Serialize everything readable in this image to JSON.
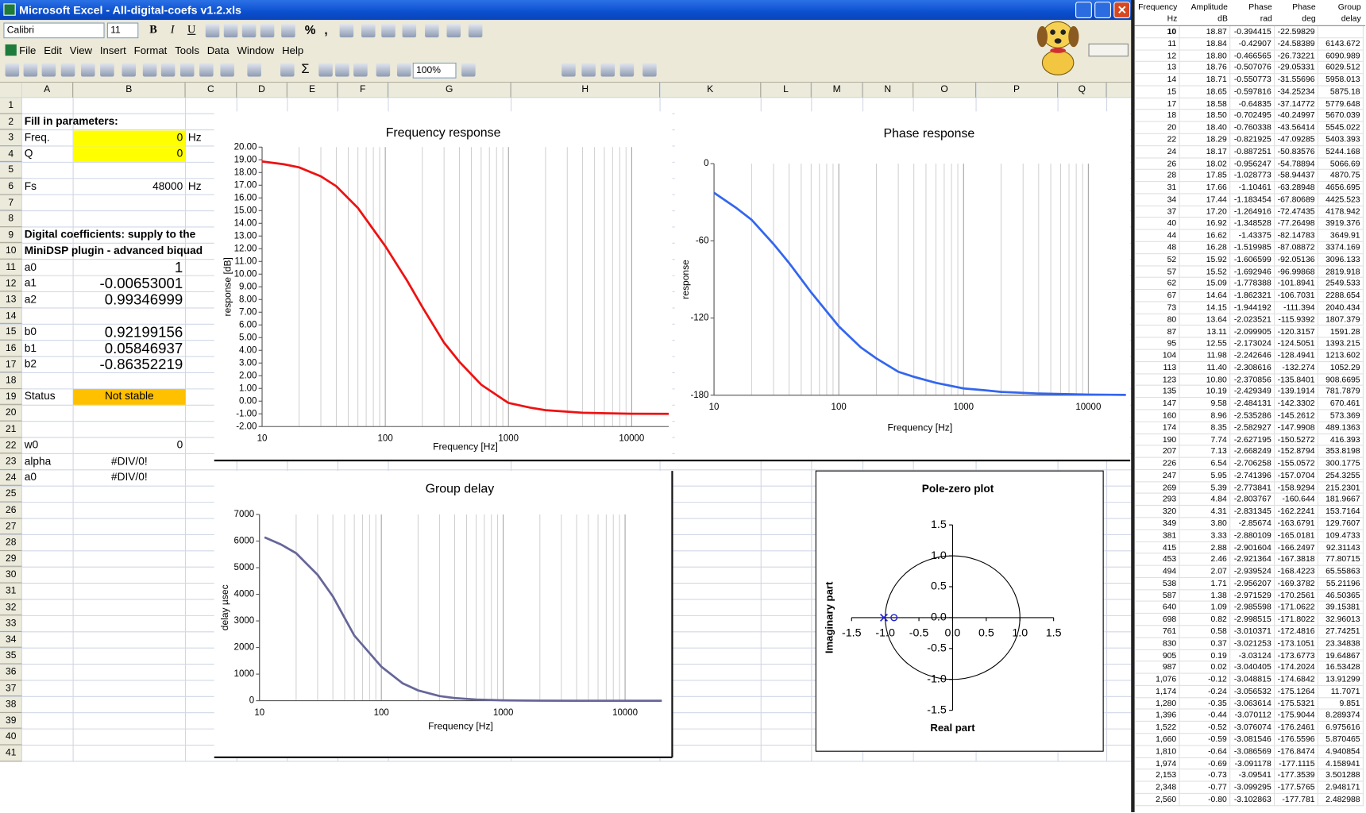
{
  "title_bar": {
    "title": "Microsoft Excel - All-digital-coefs v1.2.xls"
  },
  "toolbar": {
    "font": "Calibri",
    "font_size": "11",
    "format_buttons": [
      "B",
      "I",
      "U"
    ],
    "number_buttons": [
      "%",
      ","
    ],
    "sum_button": "Σ",
    "zoom": "100%"
  },
  "menu": [
    "File",
    "Edit",
    "View",
    "Insert",
    "Format",
    "Tools",
    "Data",
    "Window",
    "Help"
  ],
  "columns": [
    "A",
    "B",
    "C",
    "D",
    "E",
    "F",
    "G",
    "H",
    "K",
    "L",
    "M",
    "N",
    "O",
    "P",
    "Q"
  ],
  "row_numbers": [
    1,
    2,
    3,
    4,
    5,
    6,
    7,
    8,
    9,
    10,
    11,
    12,
    13,
    14,
    15,
    16,
    17,
    18,
    19,
    20,
    21,
    22,
    23,
    24,
    25,
    26,
    27,
    28,
    29,
    30,
    31,
    32,
    33,
    34,
    35,
    36,
    37,
    38,
    39,
    40,
    41
  ],
  "cells": {
    "A2": "Fill in parameters:",
    "A3": "Freq.",
    "B3": "0",
    "C3": "Hz",
    "A4": "Q",
    "B4": "0",
    "A6": "Fs",
    "B6": "48000",
    "C6": "Hz",
    "A9": "Digital coefficients: supply to the",
    "A10": "MiniDSP plugin - advanced biquad",
    "A11": "a0",
    "B11": "1",
    "A12": "a1",
    "B12": "-0.00653001",
    "A13": "a2",
    "B13": "0.99346999",
    "A15": "b0",
    "B15": "0.92199156",
    "A16": "b1",
    "B16": "0.05846937",
    "A17": "b2",
    "B17": "-0.86352219",
    "A19": "Status",
    "B19": "Not stable",
    "A22": "w0",
    "B22": "0",
    "A23": "alpha",
    "B23": "#DIV/0!",
    "A24": "a0",
    "B24": "#DIV/0!"
  },
  "chart_data": [
    {
      "type": "line",
      "title": "Frequency response",
      "x_label": "Frequency [Hz]",
      "y_label": "response [dB]",
      "x": [
        10,
        15,
        20,
        30,
        40,
        60,
        100,
        150,
        200,
        300,
        400,
        600,
        1000,
        1500,
        2000,
        4000,
        10000,
        20000
      ],
      "series": [
        {
          "color": "#ee1111",
          "values": [
            18.87,
            18.65,
            18.4,
            17.7,
            16.92,
            15.2,
            12.2,
            9.5,
            7.4,
            4.6,
            3.1,
            1.3,
            -0.14,
            -0.51,
            -0.71,
            -0.92,
            -0.99,
            -1.0
          ]
        }
      ],
      "xlog": true,
      "xlim": [
        10,
        20000
      ],
      "xticks": [
        10,
        100,
        1000,
        10000
      ],
      "ylim": [
        -2,
        20
      ],
      "yticks": [
        {
          "value": 20,
          "label": "20.00"
        },
        {
          "value": 19,
          "label": "19.00"
        },
        {
          "value": 18,
          "label": "18.00"
        },
        {
          "value": 17,
          "label": "17.00"
        },
        {
          "value": 16,
          "label": "16.00"
        },
        {
          "value": 15,
          "label": "15.00"
        },
        {
          "value": 14,
          "label": "14.00"
        },
        {
          "value": 13,
          "label": "13.00"
        },
        {
          "value": 12,
          "label": "12.00"
        },
        {
          "value": 11,
          "label": "11.00"
        },
        {
          "value": 10,
          "label": "10.00"
        },
        {
          "value": 9,
          "label": "9.00"
        },
        {
          "value": 8,
          "label": "8.00"
        },
        {
          "value": 7,
          "label": "7.00"
        },
        {
          "value": 6,
          "label": "6.00"
        },
        {
          "value": 5,
          "label": "5.00"
        },
        {
          "value": 4,
          "label": "4.00"
        },
        {
          "value": 3,
          "label": "3.00"
        },
        {
          "value": 2,
          "label": "2.00"
        },
        {
          "value": 1,
          "label": "1.00"
        },
        {
          "value": 0,
          "label": "0.00"
        },
        {
          "value": -1,
          "label": "-1.00"
        },
        {
          "value": -2,
          "label": "-2.00"
        }
      ],
      "grid": "x",
      "minor_grid": true
    },
    {
      "type": "line",
      "title": "Phase response",
      "x_label": "Frequency [Hz]",
      "y_label": "response",
      "x": [
        10,
        15,
        20,
        30,
        40,
        60,
        100,
        150,
        200,
        300,
        400,
        600,
        1000,
        1500,
        2000,
        4000,
        10000,
        20000
      ],
      "series": [
        {
          "color": "#3366ee",
          "values": [
            -22.6,
            -34.25,
            -43.56,
            -62.5,
            -77.26,
            -100,
            -126.5,
            -142.8,
            -151.4,
            -161.8,
            -165.7,
            -170.4,
            -174.7,
            -176.2,
            -177.4,
            -178.7,
            -179.5,
            -179.7
          ]
        }
      ],
      "xlog": true,
      "xlim": [
        10,
        20000
      ],
      "xticks": [
        10,
        100,
        1000,
        10000
      ],
      "ylim": [
        -180,
        0
      ],
      "yticks": [
        0,
        -60,
        -120,
        -180
      ],
      "grid": "x",
      "minor_grid": true
    },
    {
      "type": "line",
      "title": "Group delay",
      "x_label": "Frequency [Hz]",
      "y_label": "delay µsec",
      "x": [
        11,
        15,
        20,
        30,
        40,
        60,
        100,
        150,
        200,
        300,
        400,
        600,
        1000,
        1500,
        2000,
        4000,
        10000,
        20000
      ],
      "series": [
        {
          "color": "#666699",
          "values": [
            6144,
            5875,
            5545,
            4730,
            3919,
            2450,
            1280,
            650,
            390,
            175,
            100,
            45,
            14,
            7,
            3.9,
            1,
            0.16,
            0.04
          ]
        }
      ],
      "xlog": true,
      "xlim": [
        10,
        20000
      ],
      "xticks": [
        10,
        100,
        1000,
        10000
      ],
      "ylim": [
        0,
        7000
      ],
      "yticks": [
        0,
        1000,
        2000,
        3000,
        4000,
        5000,
        6000,
        7000
      ],
      "grid": "x",
      "minor_grid": true
    },
    {
      "type": "scatter",
      "title": "Pole-zero plot",
      "x_label": "Real part",
      "y_label": "Imaginary part",
      "series": [
        {
          "color": "#2222cc",
          "marker": "x",
          "x": [
            -1.02
          ],
          "values": [
            0
          ]
        },
        {
          "color": "#2222cc",
          "marker": "o",
          "x": [
            -0.87
          ],
          "values": [
            0
          ]
        }
      ],
      "xlim": [
        -1.5,
        1.5
      ],
      "ylim": [
        -1.5,
        1.5
      ],
      "xticks": [
        -1.5,
        {
          "value": -1,
          "label": "-1.0"
        },
        -0.5,
        {
          "value": 0,
          "label": "0.0"
        },
        0.5,
        {
          "value": 1,
          "label": "1.0"
        },
        1.5
      ],
      "yticks": [
        -1.5,
        {
          "value": -1,
          "label": "-1.0"
        },
        -0.5,
        {
          "value": 0,
          "label": "0.0"
        },
        0.5,
        {
          "value": 1,
          "label": "1.0"
        },
        1.5
      ],
      "unit_circle": true
    }
  ],
  "side_table": {
    "headers": [
      [
        "Frequency",
        "Hz"
      ],
      [
        "Amplitude",
        "dB"
      ],
      [
        "Phase",
        "rad"
      ],
      [
        "Phase",
        "deg"
      ],
      [
        "Group",
        "delay"
      ]
    ],
    "rows": [
      [
        "10",
        "18.87",
        "-0.394415",
        "-22.59829",
        ""
      ],
      [
        "11",
        "18.84",
        "-0.42907",
        "-24.58389",
        "6143.672"
      ],
      [
        "12",
        "18.80",
        "-0.466565",
        "-26.73221",
        "6090.989"
      ],
      [
        "13",
        "18.76",
        "-0.507076",
        "-29.05331",
        "6029.512"
      ],
      [
        "14",
        "18.71",
        "-0.550773",
        "-31.55696",
        "5958.013"
      ],
      [
        "15",
        "18.65",
        "-0.597816",
        "-34.25234",
        "5875.18"
      ],
      [
        "17",
        "18.58",
        "-0.64835",
        "-37.14772",
        "5779.648"
      ],
      [
        "18",
        "18.50",
        "-0.702495",
        "-40.24997",
        "5670.039"
      ],
      [
        "20",
        "18.40",
        "-0.760338",
        "-43.56414",
        "5545.022"
      ],
      [
        "22",
        "18.29",
        "-0.821925",
        "-47.09285",
        "5403.393"
      ],
      [
        "24",
        "18.17",
        "-0.887251",
        "-50.83576",
        "5244.168"
      ],
      [
        "26",
        "18.02",
        "-0.956247",
        "-54.78894",
        "5066.69"
      ],
      [
        "28",
        "17.85",
        "-1.028773",
        "-58.94437",
        "4870.75"
      ],
      [
        "31",
        "17.66",
        "-1.10461",
        "-63.28948",
        "4656.695"
      ],
      [
        "34",
        "17.44",
        "-1.183454",
        "-67.80689",
        "4425.523"
      ],
      [
        "37",
        "17.20",
        "-1.264916",
        "-72.47435",
        "4178.942"
      ],
      [
        "40",
        "16.92",
        "-1.348528",
        "-77.26498",
        "3919.376"
      ],
      [
        "44",
        "16.62",
        "-1.43375",
        "-82.14783",
        "3649.91"
      ],
      [
        "48",
        "16.28",
        "-1.519985",
        "-87.08872",
        "3374.169"
      ],
      [
        "52",
        "15.92",
        "-1.606599",
        "-92.05136",
        "3096.133"
      ],
      [
        "57",
        "15.52",
        "-1.692946",
        "-96.99868",
        "2819.918"
      ],
      [
        "62",
        "15.09",
        "-1.778388",
        "-101.8941",
        "2549.533"
      ],
      [
        "67",
        "14.64",
        "-1.862321",
        "-106.7031",
        "2288.654"
      ],
      [
        "73",
        "14.15",
        "-1.944192",
        "-111.394",
        "2040.434"
      ],
      [
        "80",
        "13.64",
        "-2.023521",
        "-115.9392",
        "1807.379"
      ],
      [
        "87",
        "13.11",
        "-2.099905",
        "-120.3157",
        "1591.28"
      ],
      [
        "95",
        "12.55",
        "-2.173024",
        "-124.5051",
        "1393.215"
      ],
      [
        "104",
        "11.98",
        "-2.242646",
        "-128.4941",
        "1213.602"
      ],
      [
        "113",
        "11.40",
        "-2.308616",
        "-132.274",
        "1052.29"
      ],
      [
        "123",
        "10.80",
        "-2.370856",
        "-135.8401",
        "908.6695"
      ],
      [
        "135",
        "10.19",
        "-2.429349",
        "-139.1914",
        "781.7879"
      ],
      [
        "147",
        "9.58",
        "-2.484131",
        "-142.3302",
        "670.461"
      ],
      [
        "160",
        "8.96",
        "-2.535286",
        "-145.2612",
        "573.369"
      ],
      [
        "174",
        "8.35",
        "-2.582927",
        "-147.9908",
        "489.1363"
      ],
      [
        "190",
        "7.74",
        "-2.627195",
        "-150.5272",
        "416.393"
      ],
      [
        "207",
        "7.13",
        "-2.668249",
        "-152.8794",
        "353.8198"
      ],
      [
        "226",
        "6.54",
        "-2.706258",
        "-155.0572",
        "300.1775"
      ],
      [
        "247",
        "5.95",
        "-2.741396",
        "-157.0704",
        "254.3255"
      ],
      [
        "269",
        "5.39",
        "-2.773841",
        "-158.9294",
        "215.2301"
      ],
      [
        "293",
        "4.84",
        "-2.803767",
        "-160.644",
        "181.9667"
      ],
      [
        "320",
        "4.31",
        "-2.831345",
        "-162.2241",
        "153.7164"
      ],
      [
        "349",
        "3.80",
        "-2.85674",
        "-163.6791",
        "129.7607"
      ],
      [
        "381",
        "3.33",
        "-2.880109",
        "-165.0181",
        "109.4733"
      ],
      [
        "415",
        "2.88",
        "-2.901604",
        "-166.2497",
        "92.31143"
      ],
      [
        "453",
        "2.46",
        "-2.921364",
        "-167.3818",
        "77.80715"
      ],
      [
        "494",
        "2.07",
        "-2.939524",
        "-168.4223",
        "65.55863"
      ],
      [
        "538",
        "1.71",
        "-2.956207",
        "-169.3782",
        "55.21196"
      ],
      [
        "587",
        "1.38",
        "-2.971529",
        "-170.2561",
        "46.50365"
      ],
      [
        "640",
        "1.09",
        "-2.985598",
        "-171.0622",
        "39.15381"
      ],
      [
        "698",
        "0.82",
        "-2.998515",
        "-171.8022",
        "32.96013"
      ],
      [
        "761",
        "0.58",
        "-3.010371",
        "-172.4816",
        "27.74251"
      ],
      [
        "830",
        "0.37",
        "-3.021253",
        "-173.1051",
        "23.34838"
      ],
      [
        "905",
        "0.19",
        "-3.03124",
        "-173.6773",
        "19.64867"
      ],
      [
        "987",
        "0.02",
        "-3.040405",
        "-174.2024",
        "16.53428"
      ],
      [
        "1,076",
        "-0.12",
        "-3.048815",
        "-174.6842",
        "13.91299"
      ],
      [
        "1,174",
        "-0.24",
        "-3.056532",
        "-175.1264",
        "11.7071"
      ],
      [
        "1,280",
        "-0.35",
        "-3.063614",
        "-175.5321",
        "9.851"
      ],
      [
        "1,396",
        "-0.44",
        "-3.070112",
        "-175.9044",
        "8.289374"
      ],
      [
        "1,522",
        "-0.52",
        "-3.076074",
        "-176.2461",
        "6.975616"
      ],
      [
        "1,660",
        "-0.59",
        "-3.081546",
        "-176.5596",
        "5.870465"
      ],
      [
        "1,810",
        "-0.64",
        "-3.086569",
        "-176.8474",
        "4.940854"
      ],
      [
        "1,974",
        "-0.69",
        "-3.091178",
        "-177.1115",
        "4.158941"
      ],
      [
        "2,153",
        "-0.73",
        "-3.09541",
        "-177.3539",
        "3.501288"
      ],
      [
        "2,348",
        "-0.77",
        "-3.099295",
        "-177.5765",
        "2.948171"
      ],
      [
        "2,560",
        "-0.80",
        "-3.102863",
        "-177.781",
        "2.482988"
      ]
    ]
  }
}
